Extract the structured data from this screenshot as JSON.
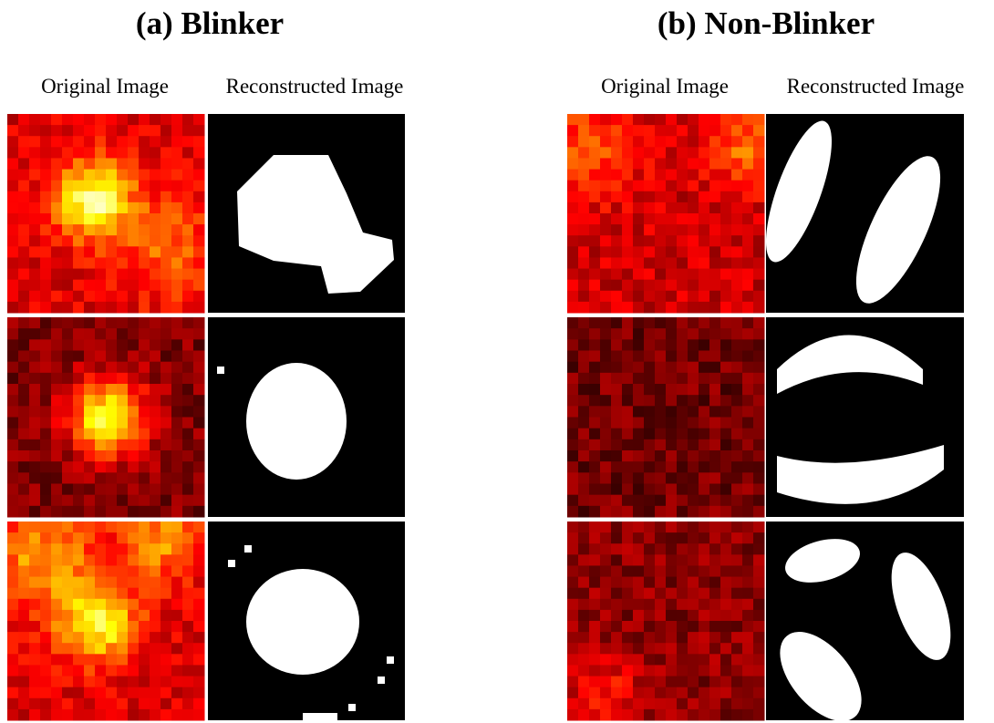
{
  "panels": [
    {
      "title": "(a)  Blinker",
      "column_labels": [
        "Original Image",
        "Reconstructed Image"
      ]
    },
    {
      "title": "(b)  Non-Blinker",
      "column_labels": [
        "Original Image",
        "Reconstructed Image"
      ]
    }
  ]
}
